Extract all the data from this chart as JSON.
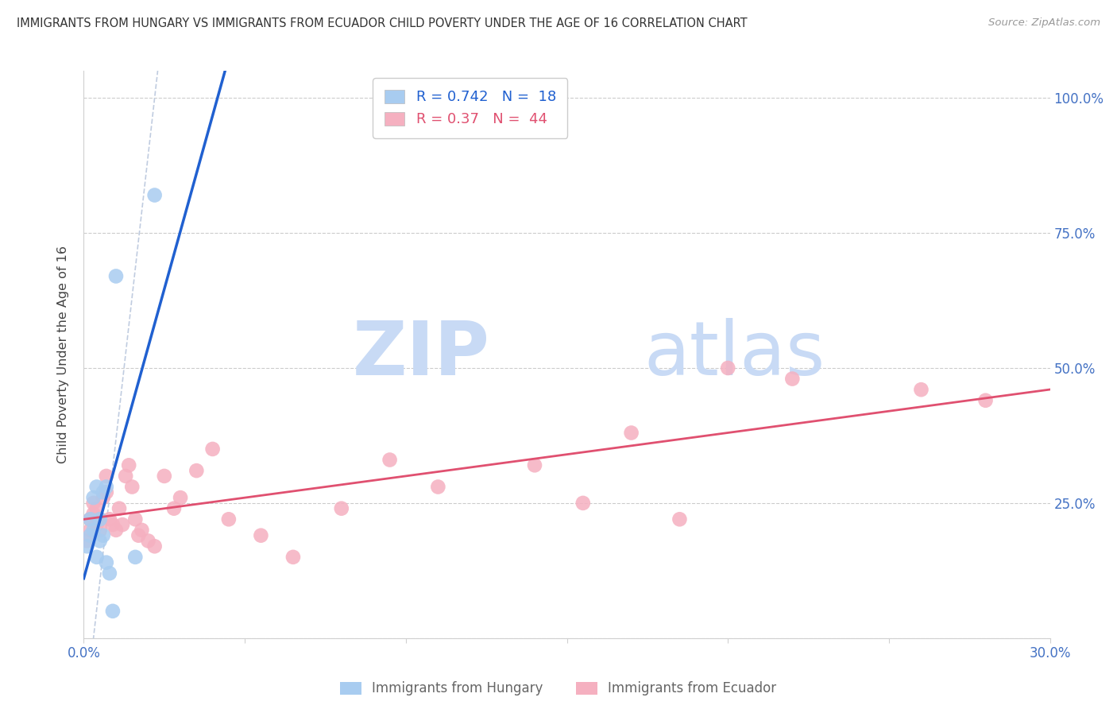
{
  "title": "IMMIGRANTS FROM HUNGARY VS IMMIGRANTS FROM ECUADOR CHILD POVERTY UNDER THE AGE OF 16 CORRELATION CHART",
  "source": "Source: ZipAtlas.com",
  "xlim": [
    0.0,
    0.3
  ],
  "ylim": [
    0.0,
    1.05
  ],
  "ylabel": "Child Poverty Under the Age of 16",
  "hungary_R": 0.742,
  "hungary_N": 18,
  "ecuador_R": 0.37,
  "ecuador_N": 44,
  "hungary_color": "#a8ccf0",
  "ecuador_color": "#f5b0c0",
  "hungary_line_color": "#2060d0",
  "ecuador_line_color": "#e05070",
  "refline_color": "#c0cce0",
  "hungary_x": [
    0.001,
    0.002,
    0.002,
    0.003,
    0.003,
    0.004,
    0.004,
    0.005,
    0.005,
    0.006,
    0.006,
    0.007,
    0.007,
    0.008,
    0.009,
    0.01,
    0.016,
    0.022
  ],
  "hungary_y": [
    0.17,
    0.19,
    0.22,
    0.2,
    0.26,
    0.15,
    0.28,
    0.18,
    0.22,
    0.19,
    0.27,
    0.14,
    0.28,
    0.12,
    0.05,
    0.67,
    0.15,
    0.82
  ],
  "ecuador_x": [
    0.001,
    0.002,
    0.002,
    0.003,
    0.003,
    0.004,
    0.004,
    0.005,
    0.005,
    0.006,
    0.007,
    0.007,
    0.008,
    0.009,
    0.01,
    0.011,
    0.012,
    0.013,
    0.014,
    0.015,
    0.016,
    0.017,
    0.018,
    0.02,
    0.022,
    0.025,
    0.028,
    0.03,
    0.035,
    0.04,
    0.045,
    0.055,
    0.065,
    0.08,
    0.095,
    0.11,
    0.14,
    0.155,
    0.17,
    0.185,
    0.2,
    0.22,
    0.26,
    0.28
  ],
  "ecuador_y": [
    0.18,
    0.2,
    0.22,
    0.23,
    0.25,
    0.21,
    0.24,
    0.2,
    0.22,
    0.26,
    0.27,
    0.3,
    0.22,
    0.21,
    0.2,
    0.24,
    0.21,
    0.3,
    0.32,
    0.28,
    0.22,
    0.19,
    0.2,
    0.18,
    0.17,
    0.3,
    0.24,
    0.26,
    0.31,
    0.35,
    0.22,
    0.19,
    0.15,
    0.24,
    0.33,
    0.28,
    0.32,
    0.25,
    0.38,
    0.22,
    0.5,
    0.48,
    0.46,
    0.44
  ],
  "legend_hungary_label": "Immigrants from Hungary",
  "legend_ecuador_label": "Immigrants from Ecuador",
  "background_color": "#ffffff",
  "grid_color": "#cccccc",
  "tick_label_color": "#4472c4",
  "title_color": "#333333",
  "watermark_zip": "ZIP",
  "watermark_atlas": "atlas",
  "watermark_color_zip": "#c8daf5",
  "watermark_color_atlas": "#c8daf5",
  "watermark_fontsize": 68
}
